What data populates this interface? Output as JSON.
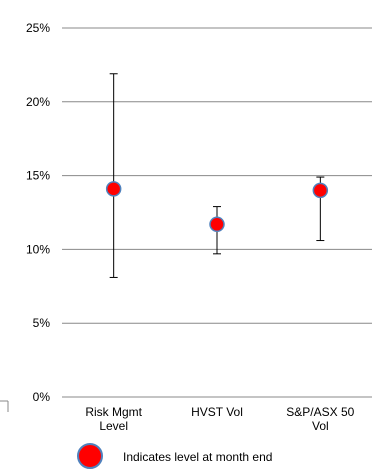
{
  "chart_data": {
    "type": "scatter",
    "title": "",
    "xlabel": "",
    "ylabel": "",
    "ylim": [
      0,
      25
    ],
    "yticks": [
      0,
      5,
      10,
      15,
      20,
      25
    ],
    "ytick_labels": [
      "0%",
      "5%",
      "10%",
      "15%",
      "20%",
      "25%"
    ],
    "grid": true,
    "categories": [
      [
        "Risk Mgmt",
        "Level"
      ],
      [
        "HVST Vol"
      ],
      [
        "S&P/ASX 50",
        "Vol"
      ]
    ],
    "series": [
      {
        "points": [
          14.1,
          11.7,
          14.0
        ],
        "error_low": [
          8.1,
          9.7,
          10.6
        ],
        "error_high": [
          21.9,
          12.9,
          14.9
        ]
      }
    ],
    "marker_color": "#ff0000",
    "marker_edge_color": "#4f81bd",
    "legend": {
      "placement": "bottom-left",
      "entries": [
        "Indicates level at month end"
      ]
    }
  }
}
